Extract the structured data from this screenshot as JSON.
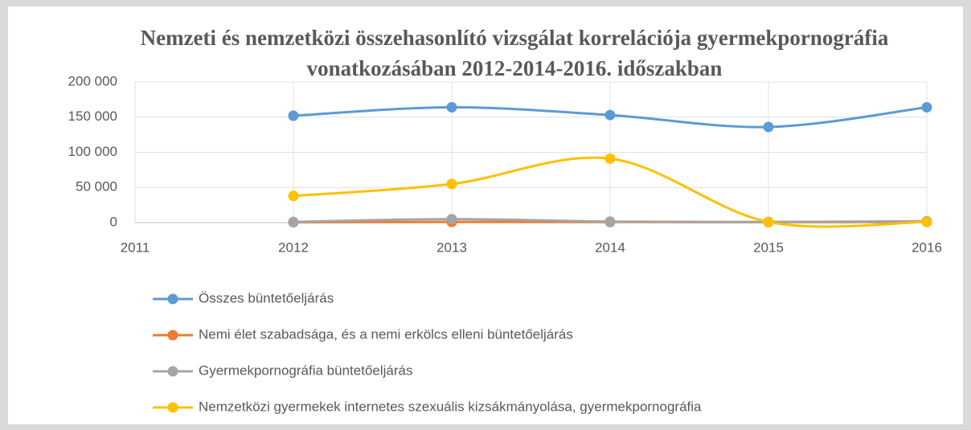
{
  "chart_data": {
    "type": "line",
    "title": "Nemzeti és nemzetközi összehasonlító vizsgálat korrelációja gyermekpornográfia vonatkozásában 2012-2014-2016. időszakban",
    "x": [
      2012,
      2013,
      2014,
      2015,
      2016
    ],
    "xlim": [
      2011,
      2016
    ],
    "xticks": [
      2011,
      2012,
      2013,
      2014,
      2015,
      2016
    ],
    "ylim": [
      0,
      200000
    ],
    "yticks": [
      0,
      {
        "value": 50000,
        "label": "50 000"
      },
      {
        "value": 100000,
        "label": "100 000"
      },
      {
        "value": 150000,
        "label": "150 000"
      },
      {
        "value": 200000,
        "label": "200 000"
      }
    ],
    "grid": true,
    "legend": "bottom",
    "smooth": true,
    "series": [
      {
        "name": "Összes büntetőeljárás",
        "color": "#5b9bd5",
        "values": [
          152000,
          164000,
          153000,
          136000,
          164000
        ]
      },
      {
        "name": "Nemi élet szabadsága, és a nemi erkölcs elleni büntetőeljárás",
        "color": "#ed7d31",
        "values": [
          500,
          1000,
          800,
          700,
          900
        ]
      },
      {
        "name": "Gyermekpornográfia büntetőeljárás",
        "color": "#a5a5a5",
        "values": [
          1000,
          5000,
          1500,
          1000,
          2000
        ]
      },
      {
        "name": "Nemzetközi gyermekek internetes szexuális kizsákmányolása, gyermekpornográfia",
        "color": "#ffc000",
        "values": [
          38000,
          55000,
          91000,
          1000,
          1000
        ]
      }
    ]
  }
}
